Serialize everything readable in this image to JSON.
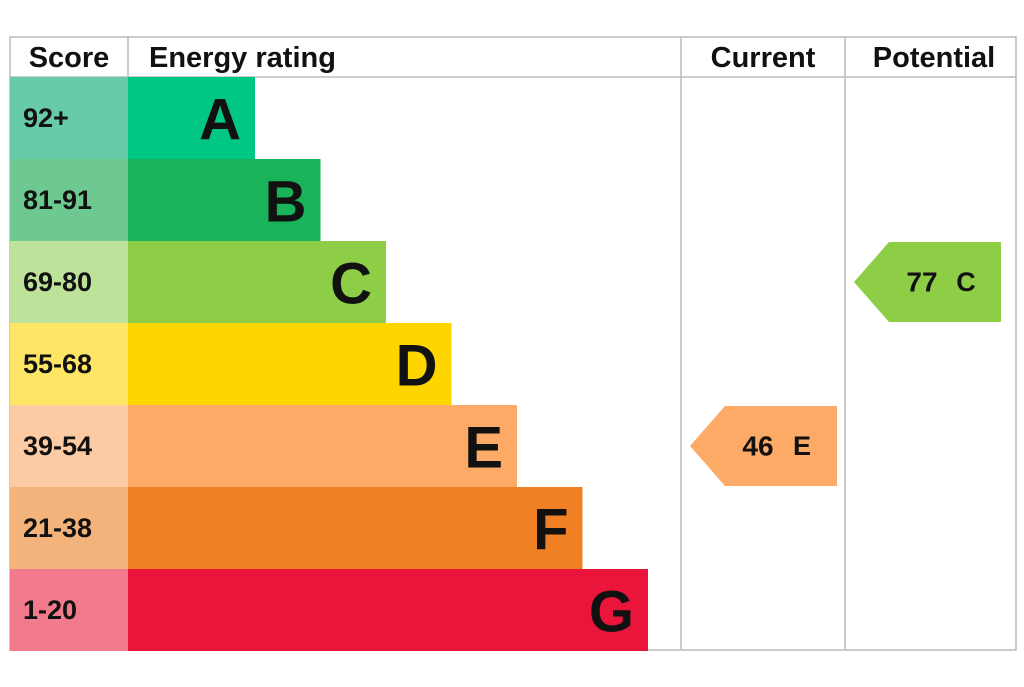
{
  "header": {
    "score": "Score",
    "energy_rating": "Energy rating",
    "current": "Current",
    "potential": "Potential"
  },
  "bands": [
    {
      "score": "92+",
      "letter": "A",
      "color": "#00c781",
      "score_color": "#66cba6"
    },
    {
      "score": "81-91",
      "letter": "B",
      "color": "#19b459",
      "score_color": "#6dc98f"
    },
    {
      "score": "69-80",
      "letter": "C",
      "color": "#8dce46",
      "score_color": "#bde29a"
    },
    {
      "score": "55-68",
      "letter": "D",
      "color": "#ffd500",
      "score_color": "#ffe566"
    },
    {
      "score": "39-54",
      "letter": "E",
      "color": "#fcaa65",
      "score_color": "#fdcba3"
    },
    {
      "score": "21-38",
      "letter": "F",
      "color": "#ef8023",
      "score_color": "#f4b37b"
    },
    {
      "score": "1-20",
      "letter": "G",
      "color": "#e9153b",
      "score_color": "#f27a8d"
    }
  ],
  "current": {
    "value": 46,
    "letter": "E"
  },
  "potential": {
    "value": 77,
    "letter": "C"
  }
}
